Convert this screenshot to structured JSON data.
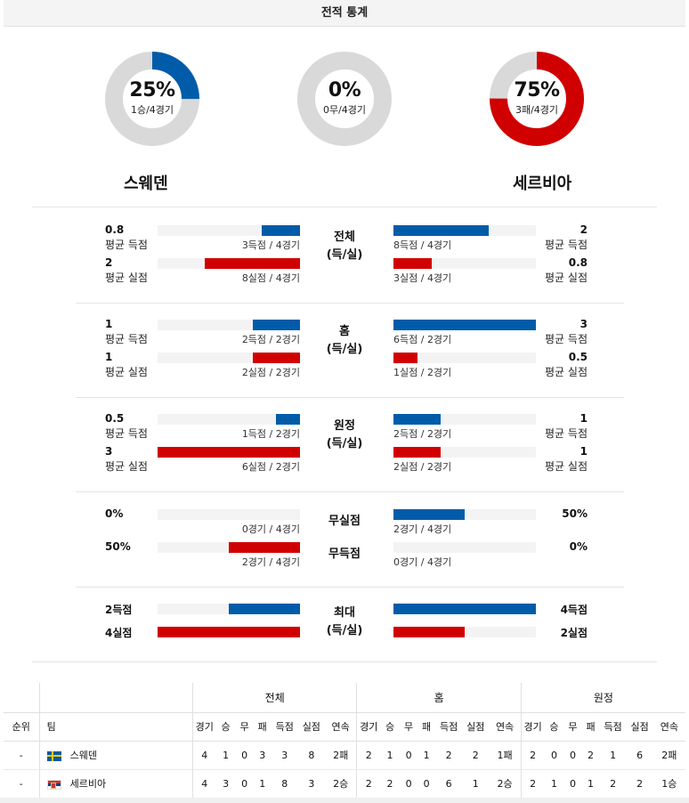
{
  "title": "전적 통계",
  "colors": {
    "blue": "#005ca9",
    "red": "#d00000",
    "track": "#d9d9d9"
  },
  "donuts": [
    {
      "pct": "25%",
      "sub": "1승/4경기",
      "fraction": 0.25,
      "color": "#005ca9"
    },
    {
      "pct": "0%",
      "sub": "0무/4경기",
      "fraction": 0,
      "color": "#005ca9"
    },
    {
      "pct": "75%",
      "sub": "3패/4경기",
      "fraction": 0.75,
      "color": "#d00000"
    }
  ],
  "teams": {
    "left": "스웨덴",
    "right": "세르비아"
  },
  "sections": [
    {
      "label": [
        "전체",
        "(득/실)"
      ],
      "rows": [
        {
          "left_val": "0.8",
          "left_label": "평균 득점",
          "left_caption": "3득점 / 4경기",
          "left_frac": 0.27,
          "right_val": "2",
          "right_label": "평균 득점",
          "right_caption": "8득점 / 4경기",
          "right_frac": 0.67,
          "color": "#005ca9"
        },
        {
          "left_val": "2",
          "left_label": "평균 실점",
          "left_caption": "8실점 / 4경기",
          "left_frac": 0.67,
          "right_val": "0.8",
          "right_label": "평균 실점",
          "right_caption": "3실점 / 4경기",
          "right_frac": 0.27,
          "color": "#d00000"
        }
      ]
    },
    {
      "label": [
        "홈",
        "(득/실)"
      ],
      "rows": [
        {
          "left_val": "1",
          "left_label": "평균 득점",
          "left_caption": "2득점 / 2경기",
          "left_frac": 0.33,
          "right_val": "3",
          "right_label": "평균 득점",
          "right_caption": "6득점 / 2경기",
          "right_frac": 1.0,
          "color": "#005ca9"
        },
        {
          "left_val": "1",
          "left_label": "평균 실점",
          "left_caption": "2실점 / 2경기",
          "left_frac": 0.33,
          "right_val": "0.5",
          "right_label": "평균 실점",
          "right_caption": "1실점 / 2경기",
          "right_frac": 0.17,
          "color": "#d00000"
        }
      ]
    },
    {
      "label": [
        "원정",
        "(득/실)"
      ],
      "rows": [
        {
          "left_val": "0.5",
          "left_label": "평균 득점",
          "left_caption": "1득점 / 2경기",
          "left_frac": 0.17,
          "right_val": "1",
          "right_label": "평균 득점",
          "right_caption": "2득점 / 2경기",
          "right_frac": 0.33,
          "color": "#005ca9"
        },
        {
          "left_val": "3",
          "left_label": "평균 실점",
          "left_caption": "6실점 / 2경기",
          "left_frac": 1.0,
          "right_val": "1",
          "right_label": "평균 실점",
          "right_caption": "2실점 / 2경기",
          "right_frac": 0.33,
          "color": "#d00000"
        }
      ]
    },
    {
      "label": [
        "무실점",
        "무득점"
      ],
      "rows": [
        {
          "left_val": "0%",
          "left_label": "",
          "left_caption": "0경기 / 4경기",
          "left_frac": 0,
          "right_val": "50%",
          "right_label": "",
          "right_caption": "2경기 / 4경기",
          "right_frac": 0.5,
          "color": "#005ca9"
        },
        {
          "left_val": "50%",
          "left_label": "",
          "left_caption": "2경기 / 4경기",
          "left_frac": 0.5,
          "right_val": "0%",
          "right_label": "",
          "right_caption": "0경기 / 4경기",
          "right_frac": 0,
          "color": "#d00000"
        }
      ]
    },
    {
      "label": [
        "최대",
        "(득/실)"
      ],
      "rows": [
        {
          "left_val": "2득점",
          "left_label": "",
          "left_caption": "",
          "left_frac": 0.5,
          "right_val": "4득점",
          "right_label": "",
          "right_caption": "",
          "right_frac": 1.0,
          "color": "#005ca9"
        },
        {
          "left_val": "4실점",
          "left_label": "",
          "left_caption": "",
          "left_frac": 1.0,
          "right_val": "2실점",
          "right_label": "",
          "right_caption": "",
          "right_frac": 0.5,
          "color": "#d00000"
        }
      ]
    }
  ],
  "table": {
    "groups": [
      "전체",
      "홈",
      "원정"
    ],
    "head_rank": "순위",
    "head_team": "팀",
    "cols": [
      "경기",
      "승",
      "무",
      "패",
      "득점",
      "실점",
      "연속"
    ],
    "rows": [
      {
        "rank": "-",
        "team": "스웨덴",
        "flag": "se",
        "total": [
          "4",
          "1",
          "0",
          "3",
          "3",
          "8",
          "2패"
        ],
        "home": [
          "2",
          "1",
          "0",
          "1",
          "2",
          "2",
          "1패"
        ],
        "away": [
          "2",
          "0",
          "0",
          "2",
          "1",
          "6",
          "2패"
        ]
      },
      {
        "rank": "-",
        "team": "세르비아",
        "flag": "rs",
        "total": [
          "4",
          "3",
          "0",
          "1",
          "8",
          "3",
          "2승"
        ],
        "home": [
          "2",
          "2",
          "0",
          "0",
          "6",
          "1",
          "2승"
        ],
        "away": [
          "2",
          "1",
          "0",
          "1",
          "2",
          "2",
          "1승"
        ]
      }
    ]
  }
}
